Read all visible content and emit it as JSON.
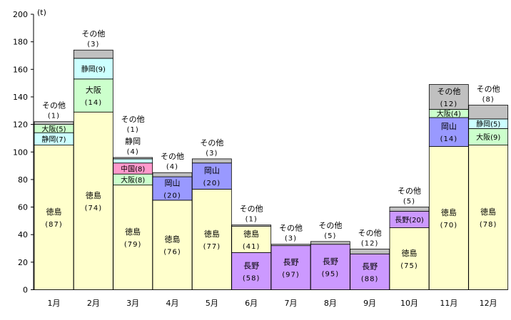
{
  "colors": {
    "徳島": "#ffffcc",
    "長野": "#cc99ff",
    "静岡": "#ccffff",
    "大阪": "#ccffcc",
    "中国": "#ff99cc",
    "岡山": "#9999ff",
    "その他": "#c0c0c0"
  },
  "chart_data": {
    "type": "bar",
    "stacked": true,
    "title": "",
    "xlabel": "",
    "ylabel": "",
    "unit_label": "(t)",
    "ylim": [
      0,
      200
    ],
    "yticks": [
      "0",
      "20",
      "40",
      "60",
      "80",
      "100",
      "120",
      "140",
      "160",
      "180",
      "200"
    ],
    "grid": false,
    "legend": "none",
    "categories": [
      "1月",
      "2月",
      "3月",
      "4月",
      "5月",
      "6月",
      "7月",
      "8月",
      "9月",
      "10月",
      "11月",
      "12月"
    ],
    "bars": [
      {
        "month": "1月",
        "segments": [
          {
            "name": "徳島",
            "value": 105,
            "pct": "(87)"
          },
          {
            "name": "静岡",
            "value": 9,
            "pct": "(7)"
          },
          {
            "name": "大阪",
            "value": 6,
            "pct": "(5)"
          },
          {
            "name": "その他",
            "value": 2,
            "pct": "(1)"
          }
        ]
      },
      {
        "month": "2月",
        "segments": [
          {
            "name": "徳島",
            "value": 129,
            "pct": "(74)"
          },
          {
            "name": "大阪",
            "value": 24,
            "pct": "(14)"
          },
          {
            "name": "静岡",
            "value": 15,
            "pct": "(9)"
          },
          {
            "name": "その他",
            "value": 6,
            "pct": "(3)"
          }
        ]
      },
      {
        "month": "3月",
        "segments": [
          {
            "name": "徳島",
            "value": 76,
            "pct": "(79)"
          },
          {
            "name": "大阪",
            "value": 8,
            "pct": "(8)"
          },
          {
            "name": "中国",
            "value": 8,
            "pct": "(8)"
          },
          {
            "name": "静岡",
            "value": 3,
            "pct": "(4)"
          },
          {
            "name": "その他",
            "value": 1,
            "pct": "(1)"
          }
        ]
      },
      {
        "month": "4月",
        "segments": [
          {
            "name": "徳島",
            "value": 65,
            "pct": "(76)"
          },
          {
            "name": "岡山",
            "value": 17,
            "pct": "(20)"
          },
          {
            "name": "その他",
            "value": 3,
            "pct": "(4)"
          }
        ]
      },
      {
        "month": "5月",
        "segments": [
          {
            "name": "徳島",
            "value": 73,
            "pct": "(77)"
          },
          {
            "name": "岡山",
            "value": 19,
            "pct": "(20)"
          },
          {
            "name": "その他",
            "value": 3,
            "pct": "(3)"
          }
        ]
      },
      {
        "month": "6月",
        "segments": [
          {
            "name": "長野",
            "value": 27,
            "pct": "(58)"
          },
          {
            "name": "徳島",
            "value": 19,
            "pct": "(41)"
          },
          {
            "name": "その他",
            "value": 1,
            "pct": "(1)"
          }
        ]
      },
      {
        "month": "7月",
        "segments": [
          {
            "name": "長野",
            "value": 32,
            "pct": "(97)"
          },
          {
            "name": "その他",
            "value": 1,
            "pct": "(3)"
          }
        ]
      },
      {
        "month": "8月",
        "segments": [
          {
            "name": "長野",
            "value": 33,
            "pct": "(95)"
          },
          {
            "name": "その他",
            "value": 2,
            "pct": "(5)"
          }
        ]
      },
      {
        "month": "9月",
        "segments": [
          {
            "name": "長野",
            "value": 26,
            "pct": "(88)"
          },
          {
            "name": "その他",
            "value": 3.5,
            "pct": "(12)"
          }
        ]
      },
      {
        "month": "10月",
        "segments": [
          {
            "name": "徳島",
            "value": 45,
            "pct": "(75)"
          },
          {
            "name": "長野",
            "value": 12,
            "pct": "(20)"
          },
          {
            "name": "その他",
            "value": 3,
            "pct": "(5)"
          }
        ]
      },
      {
        "month": "11月",
        "segments": [
          {
            "name": "徳島",
            "value": 104,
            "pct": "(70)"
          },
          {
            "name": "岡山",
            "value": 21,
            "pct": "(14)"
          },
          {
            "name": "大阪",
            "value": 6,
            "pct": "(4)"
          },
          {
            "name": "その他",
            "value": 18,
            "pct": "(12)"
          }
        ]
      },
      {
        "month": "12月",
        "segments": [
          {
            "name": "徳島",
            "value": 105,
            "pct": "(78)"
          },
          {
            "name": "大阪",
            "value": 12,
            "pct": "(9)"
          },
          {
            "name": "静岡",
            "value": 7,
            "pct": "(5)"
          },
          {
            "name": "その他",
            "value": 10,
            "pct": "(8)"
          }
        ]
      }
    ]
  }
}
